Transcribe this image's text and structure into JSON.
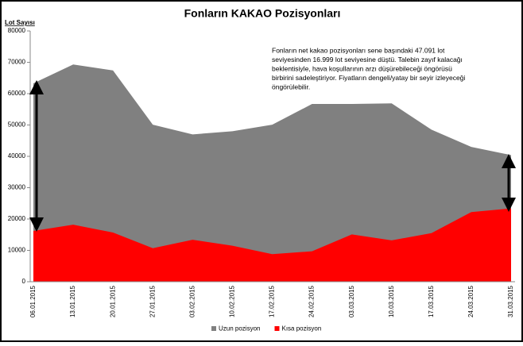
{
  "chart_data": {
    "type": "area",
    "title": "Fonların KAKAO Pozisyonları",
    "y_axis_label": "Lot Sayısı",
    "x": [
      "06.01.2015",
      "13.01.2015",
      "20.01.2015",
      "27.01.2015",
      "03.02.2015",
      "10.02.2015",
      "17.02.2015",
      "24.02.2015",
      "03.03.2015",
      "10.03.2015",
      "17.03.2015",
      "24.03.2015",
      "31.03.2015"
    ],
    "series": [
      {
        "name": "Uzun pozisyon",
        "color": "#808080",
        "values": [
          63300,
          69300,
          67400,
          50100,
          47000,
          48000,
          50100,
          56700,
          56700,
          56900,
          48500,
          43000,
          40400
        ]
      },
      {
        "name": "Kısa pozisyon",
        "color": "#ff0000",
        "values": [
          16200,
          18200,
          15700,
          10700,
          13400,
          11500,
          8800,
          9700,
          15100,
          13200,
          15500,
          22200,
          23400
        ]
      }
    ],
    "ylim": [
      0,
      80000
    ],
    "yticks": [
      0,
      10000,
      20000,
      30000,
      40000,
      50000,
      60000,
      70000,
      80000
    ],
    "grid": false,
    "legend": "bottom",
    "annotation": [
      "Fonların net kakao pozisyonları sene başındaki 47.091 lot",
      "seviyesinden 16.999 lot seviyesine düştü. Talebin zayıf kalacağı",
      "beklentisiyle, hava koşullarının arzı düşürebileceği öngörüsü",
      "birbirini sadeleştiriyor. Fiyatların dengeli/yatay bir seyir izleyeceği",
      "öngörülebilir."
    ]
  }
}
